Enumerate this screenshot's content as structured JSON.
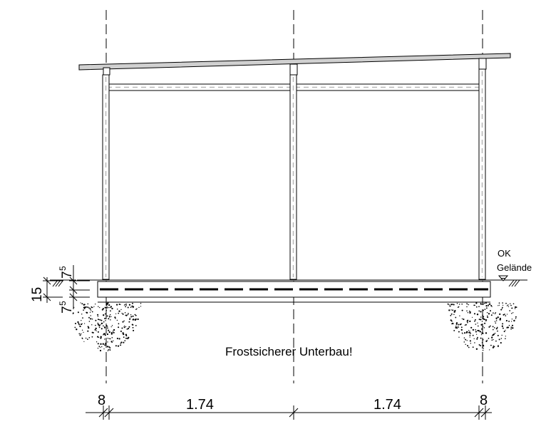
{
  "annotations": {
    "note": "Frostsicherer Unterbau!",
    "level_ok": "OK",
    "level_gelaende": "Gelände"
  },
  "dimensions": {
    "horizontal": {
      "left_post": "8",
      "span_left": "1.74",
      "span_right": "1.74",
      "right_post": "8"
    },
    "vertical": {
      "total_base": "15",
      "upper_part": "7",
      "upper_part_sup": "5",
      "lower_part": "7",
      "lower_part_sup": "5"
    }
  }
}
